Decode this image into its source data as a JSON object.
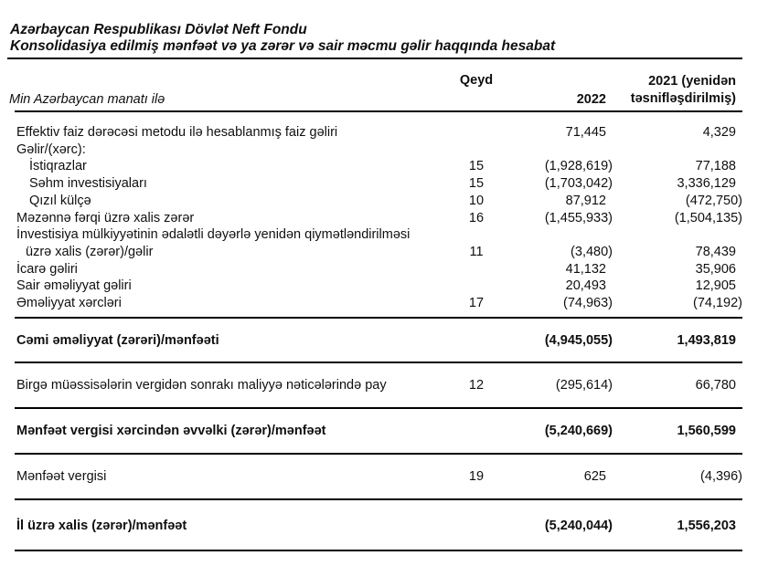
{
  "document": {
    "title_line1": "Azərbaycan Respublikası Dövlət Neft Fondu",
    "title_line2": "Konsolidasiya edilmiş mənfəət və ya zərər və sair məcmu gəlir haqqında hesabat"
  },
  "table": {
    "unit_note": "Min Azərbaycan manatı ilə",
    "columns": {
      "note": "Qeyd",
      "year_current": "2022",
      "year_prior_line1": "2021 (yenidən",
      "year_prior_line2": "təsnifləşdirilmiş)"
    },
    "rows": [
      {
        "label": "Effektiv faiz dərəcəsi metodu ilə hesablanmış faiz gəliri",
        "note": "",
        "y2022": "71,445",
        "y2021": "4,329"
      },
      {
        "label": "Gəlir/(xərc):",
        "note": "",
        "y2022": "",
        "y2021": ""
      },
      {
        "label": "İstiqrazlar",
        "note": "15",
        "y2022": "(1,928,619)",
        "y2021": "77,188"
      },
      {
        "label": "Səhm investisiyaları",
        "note": "15",
        "y2022": "(1,703,042)",
        "y2021": "3,336,129"
      },
      {
        "label": "Qızıl külçə",
        "note": "10",
        "y2022": "87,912",
        "y2021": "(472,750)"
      },
      {
        "label": "Məzənnə fərqi üzrə xalis zərər",
        "note": "16",
        "y2022": "(1,455,933)",
        "y2021": "(1,504,135)"
      },
      {
        "label": "İnvestisiya mülkiyyətinin ədalətli dəyərlə yenidən qiymətləndirilməsi",
        "label2": "üzrə xalis (zərər)/gəlir",
        "note": "11",
        "y2022": "(3,480)",
        "y2021": "78,439"
      },
      {
        "label": "İcarə gəliri",
        "note": "",
        "y2022": "41,132",
        "y2021": "35,906"
      },
      {
        "label": "Sair əməliyyat gəliri",
        "note": "",
        "y2022": "20,493",
        "y2021": "12,905"
      },
      {
        "label": "Əməliyyat xərcləri",
        "note": "17",
        "y2022": "(74,963)",
        "y2021": "(74,192)"
      },
      {
        "label": "Cəmi əməliyyat (zərəri)/mənfəəti",
        "note": "",
        "y2022": "(4,945,055)",
        "y2021": "1,493,819"
      },
      {
        "label": "Birgə müəssisələrin vergidən sonrakı maliyyə nəticələrində pay",
        "note": "12",
        "y2022": "(295,614)",
        "y2021": "66,780"
      },
      {
        "label": "Mənfəət vergisi xərcindən əvvəlki (zərər)/mənfəət",
        "note": "",
        "y2022": "(5,240,669)",
        "y2021": "1,560,599"
      },
      {
        "label": "Mənfəət vergisi",
        "note": "19",
        "y2022": "625",
        "y2021": "(4,396)"
      },
      {
        "label": "İl üzrə xalis (zərər)/mənfəət",
        "note": "",
        "y2022": "(5,240,044)",
        "y2021": "1,556,203"
      }
    ]
  }
}
